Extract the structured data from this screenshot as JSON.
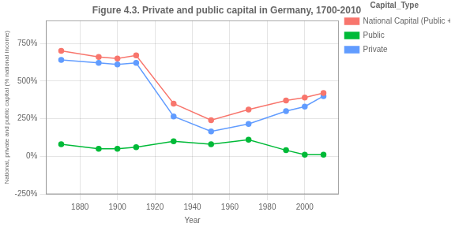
{
  "chart_data": {
    "type": "line",
    "title": "Figure 4.3. Private and public capital in Germany, 1700-2010",
    "xlabel": "Year",
    "ylabel": "National, private and public capital (% national income)",
    "legend_title": "Capital_Type",
    "x": [
      1870,
      1890,
      1900,
      1910,
      1930,
      1950,
      1970,
      1990,
      2000,
      2010
    ],
    "series": [
      {
        "name": "National Capital (Public + Private)",
        "color": "#F8766D",
        "marker": "circle",
        "values": [
          700,
          660,
          650,
          670,
          350,
          240,
          310,
          370,
          390,
          420
        ]
      },
      {
        "name": "Public",
        "color": "#00BA38",
        "marker": "circle",
        "values": [
          80,
          50,
          50,
          60,
          100,
          80,
          110,
          40,
          10,
          10
        ]
      },
      {
        "name": "Private",
        "color": "#619CFF",
        "marker": "circle",
        "values": [
          640,
          620,
          610,
          620,
          265,
          165,
          215,
          300,
          330,
          400
        ]
      }
    ],
    "xlim": [
      1862,
      2018
    ],
    "xticks": [
      1880,
      1900,
      1920,
      1940,
      1960,
      1980,
      2000
    ],
    "ylim": [
      -250,
      900
    ],
    "yticks": [
      {
        "value": -250,
        "label": "-250%"
      },
      {
        "value": 0,
        "label": "0%"
      },
      {
        "value": 250,
        "label": "250%"
      },
      {
        "value": 500,
        "label": "500%"
      },
      {
        "value": 750,
        "label": "750%"
      }
    ],
    "grid": true,
    "legend": "upper right"
  }
}
